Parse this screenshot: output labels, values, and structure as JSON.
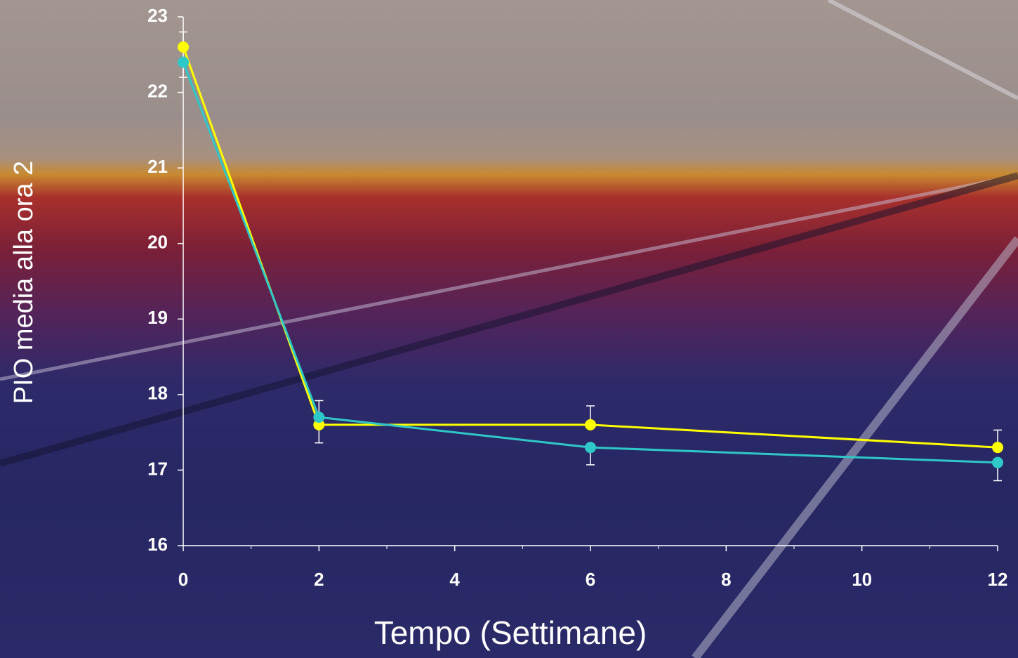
{
  "chart_data": {
    "type": "line",
    "x_label": "Tempo (Settimane)",
    "y_label": "PIO media alla ora 2",
    "xlim": [
      0,
      12
    ],
    "xticks": [
      0,
      2,
      4,
      6,
      8,
      10,
      12
    ],
    "xminorticks": [
      1,
      3,
      5,
      7,
      9,
      11
    ],
    "ylim": [
      16,
      23
    ],
    "yticks": [
      16,
      17,
      18,
      19,
      20,
      21,
      22,
      23
    ],
    "grid": false,
    "series": [
      {
        "color": "#ffff00",
        "x": [
          0,
          2,
          6,
          12
        ],
        "values": [
          22.6,
          17.6,
          17.6,
          17.3
        ],
        "errors": [
          0.2,
          0.24,
          0.25,
          0.23
        ]
      },
      {
        "color": "#2ec8c8",
        "x": [
          0,
          2,
          6,
          12
        ],
        "values": [
          22.4,
          17.7,
          17.3,
          17.1
        ],
        "errors": [
          0.2,
          0.22,
          0.23,
          0.24
        ]
      }
    ]
  }
}
